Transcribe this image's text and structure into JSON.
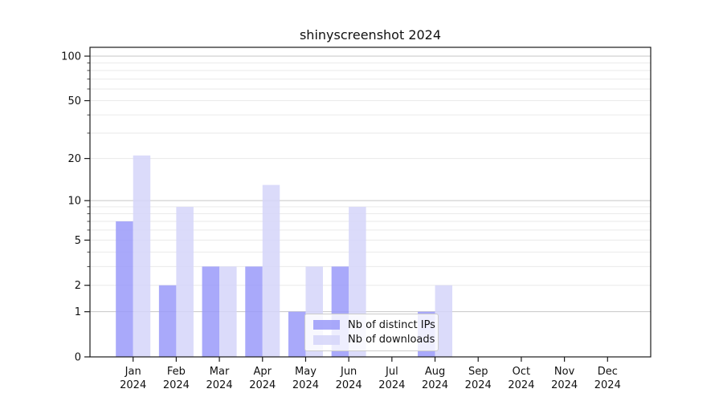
{
  "chart_data": {
    "type": "bar",
    "title": "shinyscreenshot 2024",
    "x_year": "2024",
    "categories": [
      "Jan",
      "Feb",
      "Mar",
      "Apr",
      "May",
      "Jun",
      "Jul",
      "Aug",
      "Sep",
      "Oct",
      "Nov",
      "Dec"
    ],
    "series": [
      {
        "name": "Nb of distinct IPs",
        "key": "distinct-ips",
        "color": "rgba(154,154,249,0.85)",
        "values": [
          7,
          2,
          3,
          3,
          1,
          3,
          0,
          1,
          0,
          0,
          0,
          0
        ]
      },
      {
        "name": "Nb of downloads",
        "key": "downloads",
        "color": "rgba(213,213,249,0.85)",
        "values": [
          21,
          9,
          3,
          13,
          3,
          9,
          0,
          2,
          0,
          0,
          0,
          0
        ]
      }
    ],
    "yscale": "log1p",
    "ylim": [
      0,
      117
    ],
    "y_ticks": [
      0,
      1,
      2,
      5,
      10,
      20,
      50,
      100
    ],
    "grid_major": [
      1,
      10,
      100
    ],
    "grid_minor": [
      2,
      3,
      4,
      5,
      6,
      7,
      8,
      9,
      20,
      30,
      40,
      50,
      60,
      70,
      80,
      90
    ],
    "legend_position": "lower center inside plot",
    "grid_on": true,
    "colors": {
      "grid_major": "#c6c6c6",
      "grid_minor": "#eaeaea",
      "axis": "#1a1a1a",
      "text": "#111111",
      "legend_border": "#cccccc",
      "legend_bg": "rgba(255,255,255,0.8)"
    }
  }
}
